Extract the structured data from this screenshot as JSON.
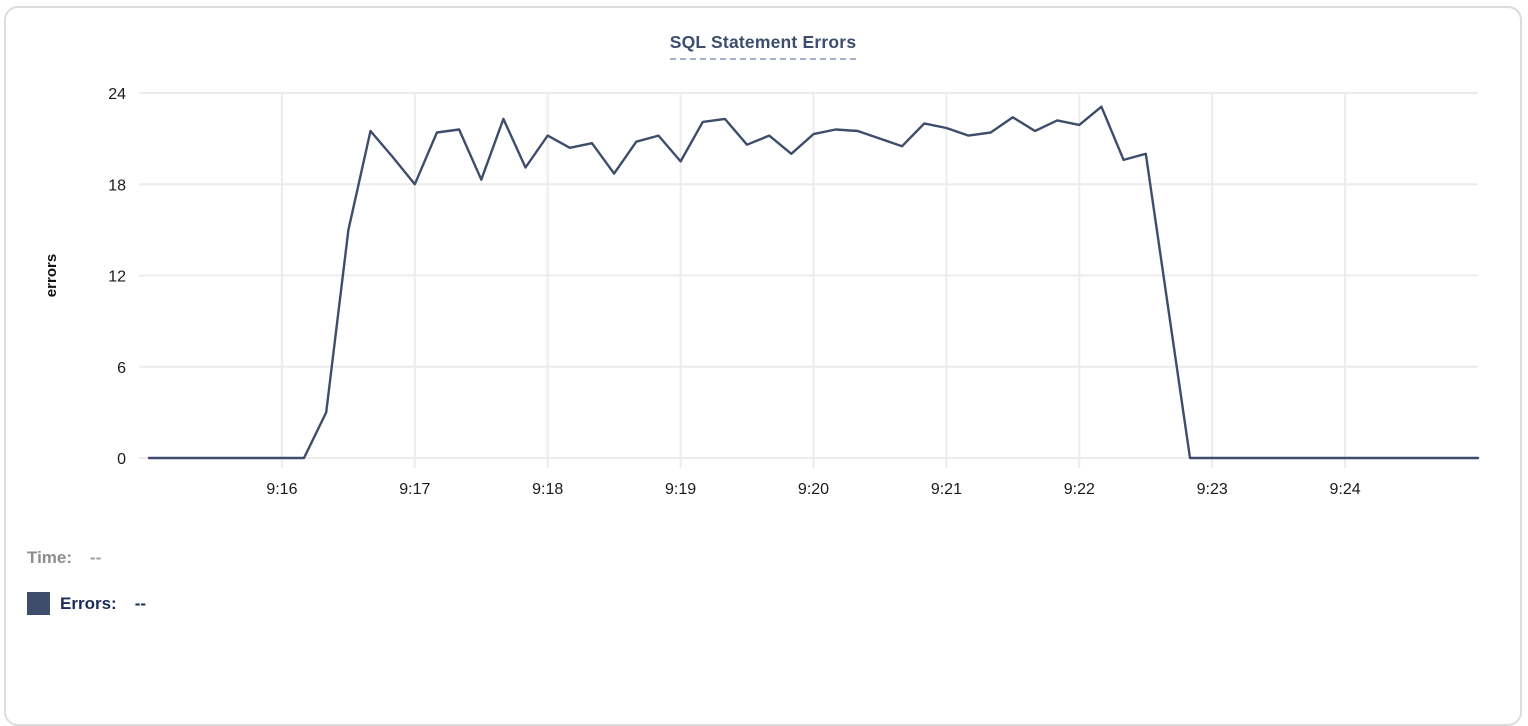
{
  "chart_data": {
    "type": "line",
    "title": "SQL Statement Errors",
    "xlabel": "",
    "ylabel": "errors",
    "ylim": [
      0,
      24
    ],
    "yticks": [
      0,
      6,
      12,
      18,
      24
    ],
    "xticks": [
      "9:16",
      "9:17",
      "9:18",
      "9:19",
      "9:20",
      "9:21",
      "9:22",
      "9:23",
      "9:24"
    ],
    "x_start_time": "9:15:00",
    "x_end_time": "9:25:00",
    "sample_interval_seconds": 10,
    "grid": true,
    "legend_position": "below-left",
    "series": [
      {
        "name": "Errors",
        "color": "#3d4d6b",
        "values": [
          0,
          0,
          0,
          0,
          0,
          0,
          0,
          0,
          3,
          15,
          21.5,
          19.8,
          18,
          21.4,
          21.6,
          18.3,
          22.3,
          19.1,
          21.2,
          20.4,
          20.7,
          18.7,
          20.8,
          21.2,
          19.5,
          22.1,
          22.3,
          20.6,
          21.2,
          20,
          21.3,
          21.6,
          21.5,
          21,
          20.5,
          22,
          21.7,
          21.2,
          21.4,
          22.4,
          21.5,
          22.2,
          21.9,
          23.1,
          19.6,
          20,
          10,
          0,
          0,
          0,
          0,
          0,
          0,
          0,
          0,
          0,
          0,
          0,
          0,
          0,
          0
        ]
      }
    ]
  },
  "readout": {
    "time_label": "Time:",
    "time_value": "--",
    "errors_label": "Errors:",
    "errors_value": "--"
  },
  "colors": {
    "title": "#3d4d6e",
    "line": "#3d4d6b",
    "errors_text": "#1c2b5a",
    "muted_label": "#8d8d8d",
    "muted_value": "#9e9e9e",
    "gridline": "#ececec",
    "tick_text": "#1a1a1a"
  }
}
